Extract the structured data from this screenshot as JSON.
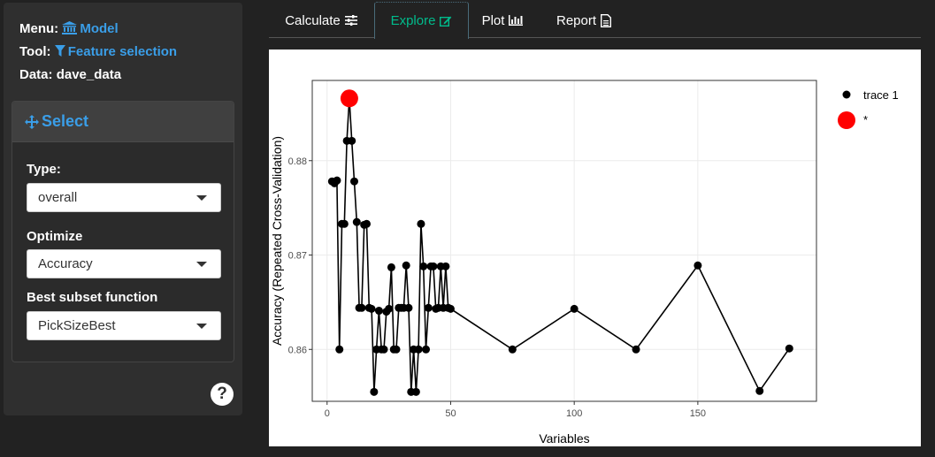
{
  "sidebar": {
    "menu_label": "Menu:",
    "menu_value": "Model",
    "tool_label": "Tool:",
    "tool_value": "Feature selection",
    "data_label": "Data:",
    "data_value": "dave_data",
    "panel_title": "Select",
    "fields": [
      {
        "label": "Type:",
        "value": "overall"
      },
      {
        "label": "Optimize",
        "value": "Accuracy"
      },
      {
        "label": "Best subset function",
        "value": "PickSizeBest"
      }
    ],
    "help_label": "?"
  },
  "tabs": [
    {
      "label": "Calculate",
      "icon": "sliders-icon",
      "active": false
    },
    {
      "label": "Explore",
      "icon": "edit-icon",
      "active": true
    },
    {
      "label": "Plot",
      "icon": "bar-chart-icon",
      "active": false
    },
    {
      "label": "Report",
      "icon": "file-text-icon",
      "active": false
    }
  ],
  "colors": {
    "accent": "#00bc8c",
    "link": "#3a9ee8",
    "highlight": "#ff0000"
  },
  "chart_data": {
    "type": "line",
    "xlabel": "Variables",
    "ylabel": "Accuracy (Repeated Cross-Validation)",
    "xlim": [
      -6,
      198
    ],
    "ylim": [
      0.8545,
      0.8885
    ],
    "xticks": [
      0,
      50,
      100,
      150
    ],
    "yticks": [
      0.86,
      0.87,
      0.88
    ],
    "ytick_labels": [
      "0.86",
      "0.87",
      "0.88"
    ],
    "grid": true,
    "legend_position": "right",
    "series": [
      {
        "name": "trace 1",
        "x": [
          2,
          3,
          4,
          5,
          6,
          7,
          8,
          9,
          10,
          11,
          12,
          13,
          14,
          15,
          16,
          17,
          18,
          19,
          20,
          21,
          22,
          23,
          24,
          25,
          26,
          27,
          28,
          29,
          30,
          31,
          32,
          33,
          34,
          35,
          36,
          37,
          38,
          39,
          40,
          41,
          42,
          43,
          44,
          45,
          46,
          47,
          48,
          49,
          50,
          75,
          100,
          125,
          150,
          175,
          187
        ],
        "y": [
          0.8778,
          0.8776,
          0.8779,
          0.86,
          0.8733,
          0.8733,
          0.8821,
          0.8866,
          0.8821,
          0.8778,
          0.8735,
          0.8644,
          0.8644,
          0.8732,
          0.8733,
          0.8644,
          0.8643,
          0.8555,
          0.86,
          0.8641,
          0.86,
          0.86,
          0.864,
          0.8643,
          0.8687,
          0.86,
          0.86,
          0.8644,
          0.8644,
          0.8644,
          0.8689,
          0.8644,
          0.8555,
          0.86,
          0.8555,
          0.86,
          0.8733,
          0.8688,
          0.86,
          0.8644,
          0.8688,
          0.8688,
          0.8643,
          0.8644,
          0.8688,
          0.8644,
          0.8688,
          0.8644,
          0.8643,
          0.86,
          0.8643,
          0.86,
          0.8689,
          0.8556,
          0.8601
        ]
      },
      {
        "name": "*",
        "x": [
          9
        ],
        "y": [
          0.8866
        ]
      }
    ]
  }
}
